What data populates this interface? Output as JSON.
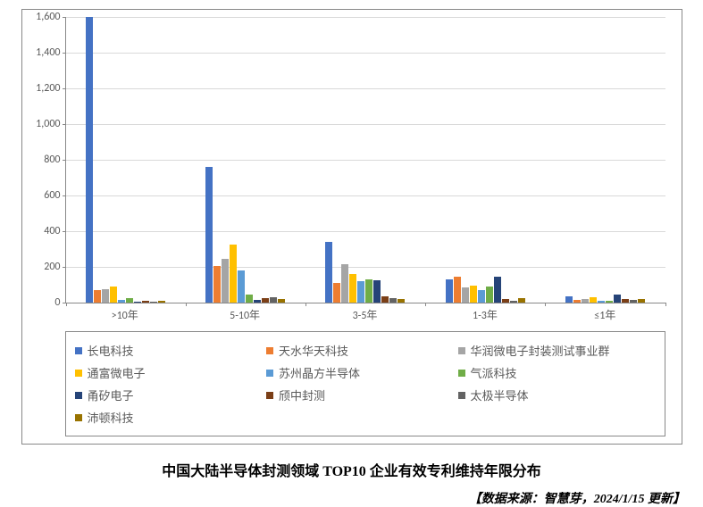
{
  "chart": {
    "type": "bar",
    "background_color": "#ffffff",
    "grid_color": "#d9d9d9",
    "border_color": "#888888",
    "tick_label_color": "#595959",
    "font_family": "Calibri, SimSun, Arial, sans-serif",
    "ylim": [
      0,
      1600
    ],
    "ytick_step": 200,
    "yticks": [
      0,
      200,
      400,
      600,
      800,
      1000,
      1200,
      1400,
      1600
    ],
    "categories": [
      ">10年",
      "5-10年",
      "3-5年",
      "1-3年",
      "≤1年"
    ],
    "series": [
      {
        "name": "长电科技",
        "color": "#4472c4",
        "values": [
          1600,
          760,
          340,
          130,
          35
        ]
      },
      {
        "name": "天水华天科技",
        "color": "#ed7d31",
        "values": [
          70,
          205,
          110,
          145,
          15
        ]
      },
      {
        "name": "华润微电子封装测试事业群",
        "color": "#a5a5a5",
        "values": [
          75,
          245,
          215,
          85,
          20
        ]
      },
      {
        "name": "通富微电子",
        "color": "#ffc000",
        "values": [
          90,
          325,
          160,
          95,
          30
        ]
      },
      {
        "name": "苏州晶方半导体",
        "color": "#5b9bd5",
        "values": [
          15,
          180,
          120,
          70,
          10
        ]
      },
      {
        "name": "气派科技",
        "color": "#70ad47",
        "values": [
          25,
          45,
          130,
          90,
          10
        ]
      },
      {
        "name": "甬矽电子",
        "color": "#264478",
        "values": [
          5,
          15,
          125,
          145,
          45
        ]
      },
      {
        "name": "颀中封测",
        "color": "#7b3f17",
        "values": [
          8,
          25,
          35,
          20,
          18
        ]
      },
      {
        "name": "太极半导体",
        "color": "#636363",
        "values": [
          3,
          30,
          25,
          12,
          15
        ]
      },
      {
        "name": "沛顿科技",
        "color": "#997300",
        "values": [
          12,
          18,
          20,
          25,
          20
        ]
      }
    ]
  },
  "caption": "中国大陆半导体封测领域 TOP10 企业有效专利维持年限分布",
  "source": "【数据来源：智慧芽，2024/1/15 更新】"
}
